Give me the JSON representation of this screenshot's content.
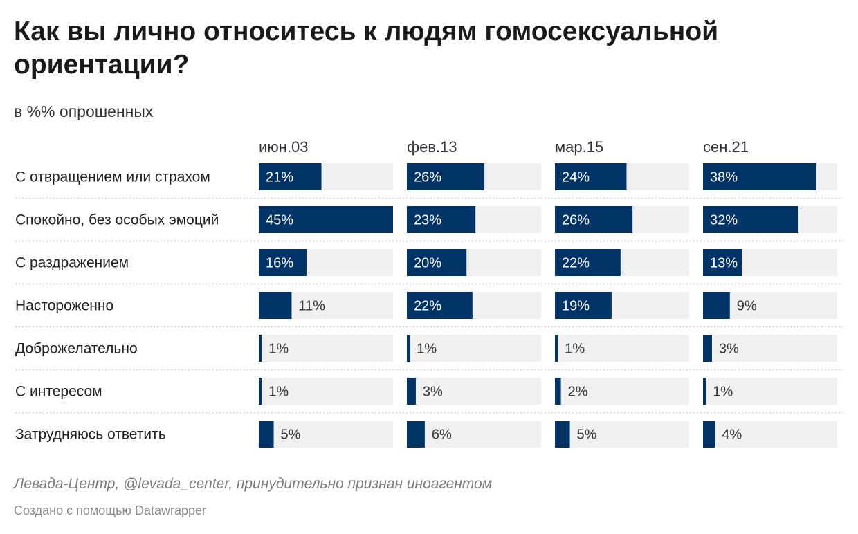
{
  "title": "Как вы лично относитесь к людям гомосексуальной ориентации?",
  "subtitle": "в %% опрошенных",
  "source": "Левада-Центр, @levada_center, принудительно признан иноагентом",
  "credit": "Создано с помощью Datawrapper",
  "colors": {
    "bar": "#003366",
    "track": "#f0f0f0",
    "divider": "#cfcfcf"
  },
  "chart_data": {
    "type": "bar",
    "orientation": "horizontal",
    "layout": "small-multiples-columns",
    "xlim": [
      0,
      45
    ],
    "value_suffix": "%",
    "categories": [
      "С отвращением или страхом",
      "Спокойно, без особых эмоций",
      "С раздражением",
      "Настороженно",
      "Доброжелательно",
      "С интересом",
      "Затрудняюсь ответить"
    ],
    "series": [
      {
        "name": "июн.03",
        "values": [
          21,
          45,
          16,
          11,
          1,
          1,
          5
        ]
      },
      {
        "name": "фев.13",
        "values": [
          26,
          23,
          20,
          22,
          1,
          3,
          6
        ]
      },
      {
        "name": "мар.15",
        "values": [
          24,
          26,
          22,
          19,
          1,
          2,
          5
        ]
      },
      {
        "name": "сен.21",
        "values": [
          38,
          32,
          13,
          9,
          3,
          1,
          4
        ]
      }
    ]
  }
}
